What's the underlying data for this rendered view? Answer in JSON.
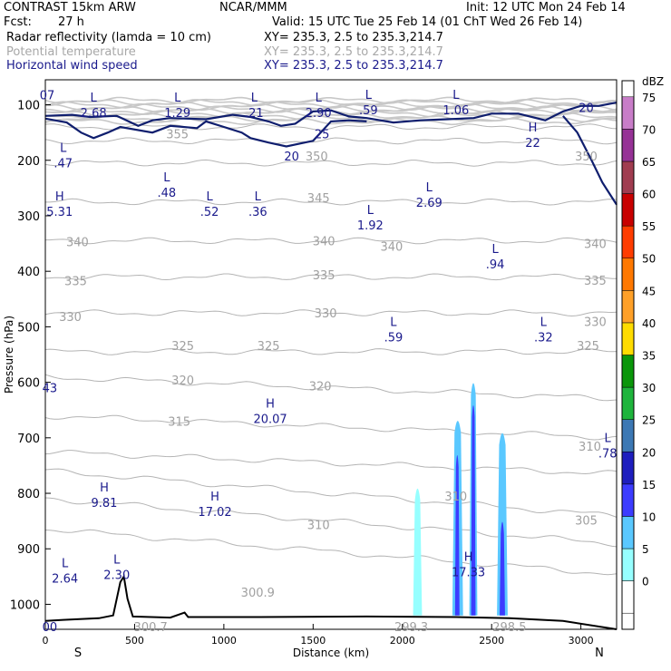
{
  "header": {
    "model": "CONTRAST 15km ARW",
    "org": "NCAR/MMM",
    "init": "Init: 12 UTC Mon 24 Feb 14",
    "fcst_label": "Fcst:",
    "fcst_value": "27 h",
    "valid": "Valid: 15 UTC Tue 25 Feb 14 (01 ChT Wed 26 Feb 14)"
  },
  "fields": [
    {
      "name": "Radar reflectivity (lamda = 10 cm)",
      "xy": "XY= 235.3,  2.5 to 235.3,214.7",
      "color": "#000000"
    },
    {
      "name": "Potential temperature",
      "xy": "XY= 235.3,  2.5 to 235.3,214.7",
      "color": "#b4b4b4"
    },
    {
      "name": "Horizontal wind speed",
      "xy": "XY= 235.3,  2.5 to 235.3,214.7",
      "color": "#1a1a8c"
    }
  ],
  "chart_data": {
    "type": "cross-section",
    "xlabel": "Distance (km)",
    "ylabel": "Pressure (hPa)",
    "x_ticks": [
      0,
      500,
      1000,
      1500,
      2000,
      2500,
      3000
    ],
    "y_ticks": [
      100,
      200,
      300,
      400,
      500,
      600,
      700,
      800,
      900,
      1000
    ],
    "xlim": [
      0,
      3200
    ],
    "ylim": [
      1045,
      55
    ],
    "x_end_labels": {
      "left": "S",
      "right": "N"
    },
    "colorbar": {
      "unit": "dBZ",
      "levels": [
        0,
        5,
        10,
        15,
        20,
        25,
        30,
        35,
        40,
        45,
        50,
        55,
        60,
        65,
        70,
        75
      ],
      "colors": [
        "#ffffff",
        "#96ffff",
        "#5ac8ff",
        "#3c3cff",
        "#1e1ebe",
        "#3c78b4",
        "#1eb43c",
        "#0a960a",
        "#ffdc00",
        "#ffa028",
        "#ff7800",
        "#ff3c00",
        "#c80000",
        "#a03c50",
        "#963296",
        "#c87dc8"
      ]
    },
    "theta_labels": [
      {
        "v": "355",
        "x": 740,
        "p": 152
      },
      {
        "v": "350",
        "x": 1520,
        "p": 192
      },
      {
        "v": "350",
        "x": 3030,
        "p": 192
      },
      {
        "v": "345",
        "x": 1530,
        "p": 267
      },
      {
        "v": "340",
        "x": 180,
        "p": 347
      },
      {
        "v": "340",
        "x": 1560,
        "p": 345
      },
      {
        "v": "340",
        "x": 1940,
        "p": 355
      },
      {
        "v": "340",
        "x": 3080,
        "p": 350
      },
      {
        "v": "335",
        "x": 170,
        "p": 417
      },
      {
        "v": "335",
        "x": 1560,
        "p": 406
      },
      {
        "v": "335",
        "x": 3080,
        "p": 416
      },
      {
        "v": "330",
        "x": 140,
        "p": 481
      },
      {
        "v": "330",
        "x": 1570,
        "p": 475
      },
      {
        "v": "330",
        "x": 3080,
        "p": 490
      },
      {
        "v": "325",
        "x": 770,
        "p": 534
      },
      {
        "v": "325",
        "x": 1250,
        "p": 534
      },
      {
        "v": "325",
        "x": 3040,
        "p": 534
      },
      {
        "v": "320",
        "x": 770,
        "p": 596
      },
      {
        "v": "320",
        "x": 1540,
        "p": 606
      },
      {
        "v": "315",
        "x": 750,
        "p": 670
      },
      {
        "v": "310",
        "x": 3050,
        "p": 715
      },
      {
        "v": "310",
        "x": 2300,
        "p": 805
      },
      {
        "v": "310",
        "x": 1530,
        "p": 856
      },
      {
        "v": "305",
        "x": 3030,
        "p": 848
      },
      {
        "v": "300.9",
        "x": 1190,
        "p": 978
      },
      {
        "v": "300.7",
        "x": 590,
        "p": 1040
      },
      {
        "v": "299.3",
        "x": 2050,
        "p": 1040
      },
      {
        "v": "298.5",
        "x": 2600,
        "p": 1040
      }
    ],
    "wind_contour_labels": [
      {
        "v": "20",
        "x": 1380,
        "p": 192
      },
      {
        "v": "25",
        "x": 1550,
        "p": 152
      },
      {
        "v": "20",
        "x": 3030,
        "p": 105
      }
    ],
    "wind_extrema": [
      {
        "type": "L",
        "v": "2.68",
        "x": 270,
        "p": 107
      },
      {
        "type": "L",
        "v": "1.29",
        "x": 740,
        "p": 107
      },
      {
        "type": "L",
        "v": ".21",
        "x": 1170,
        "p": 107
      },
      {
        "type": "L",
        "v": "2.90",
        "x": 1530,
        "p": 107
      },
      {
        "type": "L",
        "v": ".59",
        "x": 1810,
        "p": 102
      },
      {
        "type": "L",
        "v": "1.06",
        "x": 2300,
        "p": 102
      },
      {
        "type": "L",
        "v": ".47",
        "x": 100,
        "p": 198
      },
      {
        "type": "H",
        "v": "22",
        "x": 2730,
        "p": 161
      },
      {
        "type": "L",
        "v": ".48",
        "x": 680,
        "p": 251
      },
      {
        "type": "L",
        "v": ".52",
        "x": 920,
        "p": 285
      },
      {
        "type": "L",
        "v": ".36",
        "x": 1190,
        "p": 285
      },
      {
        "type": "L",
        "v": "2.69",
        "x": 2150,
        "p": 269
      },
      {
        "type": "L",
        "v": "1.92",
        "x": 1820,
        "p": 310
      },
      {
        "type": "H",
        "v": "5.31",
        "x": 80,
        "p": 285
      },
      {
        "type": "L",
        "v": ".94",
        "x": 2520,
        "p": 380
      },
      {
        "type": "L",
        "v": ".59",
        "x": 1950,
        "p": 512
      },
      {
        "type": "L",
        "v": ".32",
        "x": 2790,
        "p": 512
      },
      {
        "type": "H",
        "v": "20.07",
        "x": 1260,
        "p": 659
      },
      {
        "type": "L",
        "v": ".78",
        "x": 3150,
        "p": 721
      },
      {
        "type": "H",
        "v": "9.81",
        "x": 330,
        "p": 810
      },
      {
        "type": "H",
        "v": "17.02",
        "x": 950,
        "p": 826
      },
      {
        "type": "L",
        "v": "2.64",
        "x": 110,
        "p": 946
      },
      {
        "type": "L",
        "v": "2.30",
        "x": 400,
        "p": 940
      },
      {
        "type": "H",
        "v": "17.33",
        "x": 2370,
        "p": 935
      }
    ],
    "edge_labels": [
      {
        "v": "07",
        "x": 10,
        "p": 82
      },
      {
        "v": "43",
        "x": 25,
        "p": 610
      },
      {
        "v": "00",
        "x": 25,
        "p": 1040
      }
    ],
    "reflectivity_cells": [
      {
        "x0": 2060,
        "x1": 2110,
        "top": 780,
        "dbz": 8
      },
      {
        "x0": 2280,
        "x1": 2340,
        "top": 658,
        "dbz": 12
      },
      {
        "x0": 2295,
        "x1": 2320,
        "top": 720,
        "dbz": 18
      },
      {
        "x0": 2375,
        "x1": 2420,
        "top": 590,
        "dbz": 12
      },
      {
        "x0": 2385,
        "x1": 2410,
        "top": 630,
        "dbz": 16
      },
      {
        "x0": 2530,
        "x1": 2590,
        "top": 680,
        "dbz": 10
      },
      {
        "x0": 2545,
        "x1": 2575,
        "top": 840,
        "dbz": 18
      }
    ],
    "terrain": [
      [
        0,
        1030
      ],
      [
        100,
        1028
      ],
      [
        300,
        1025
      ],
      [
        380,
        1020
      ],
      [
        420,
        960
      ],
      [
        440,
        950
      ],
      [
        460,
        990
      ],
      [
        490,
        1022
      ],
      [
        700,
        1024
      ],
      [
        780,
        1015
      ],
      [
        800,
        1023
      ],
      [
        1200,
        1023
      ],
      [
        1800,
        1022
      ],
      [
        2300,
        1023
      ],
      [
        2600,
        1025
      ],
      [
        2900,
        1030
      ],
      [
        3200,
        1045
      ]
    ]
  }
}
